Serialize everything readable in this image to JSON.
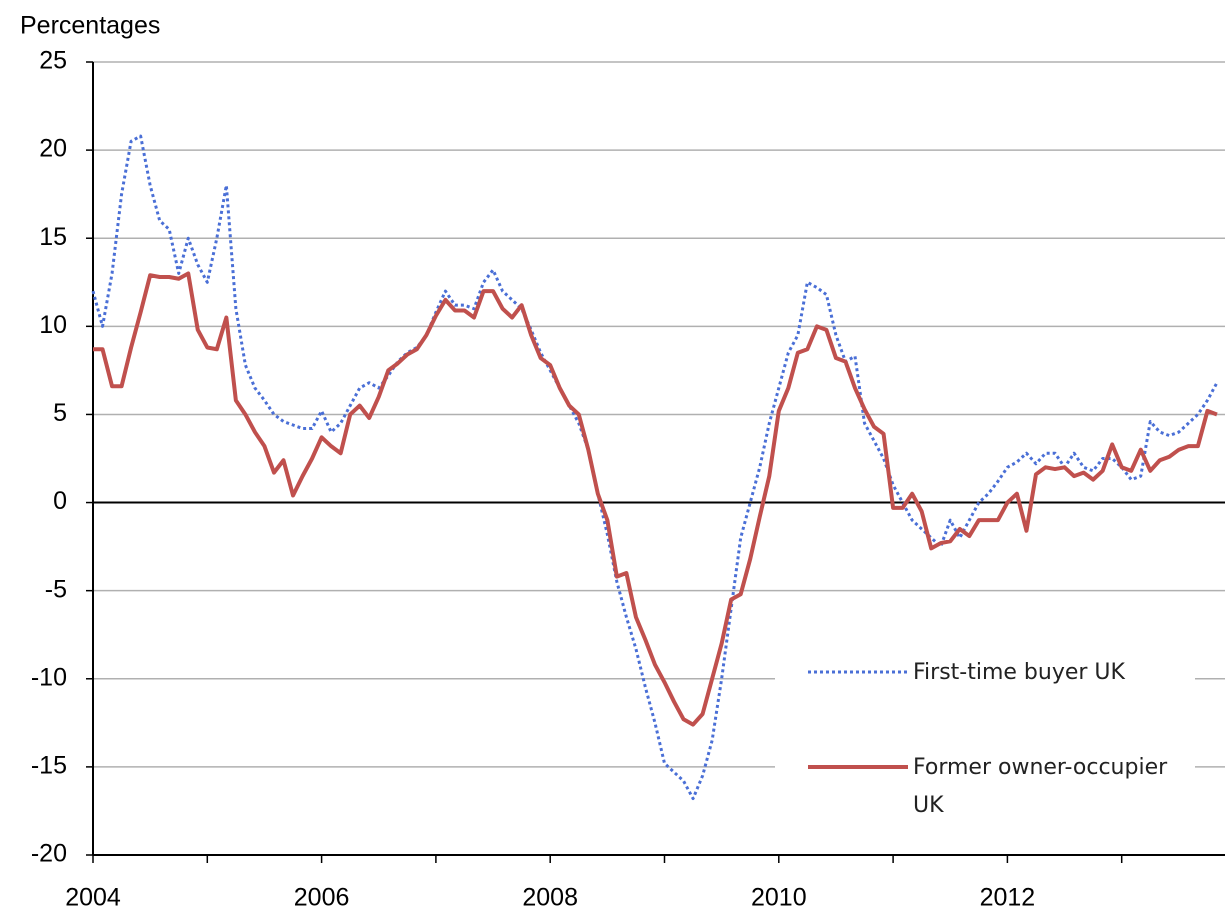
{
  "chart_data": {
    "type": "line",
    "y_label": "Percentages",
    "categories": [
      "2004",
      null,
      null,
      null,
      null,
      null,
      null,
      null,
      null,
      null,
      null,
      null,
      null,
      null,
      null,
      null,
      null,
      null,
      null,
      null,
      null,
      null,
      null,
      null,
      "2006",
      null,
      null,
      null,
      null,
      null,
      null,
      null,
      null,
      null,
      null,
      null,
      null,
      null,
      null,
      null,
      null,
      null,
      null,
      null,
      null,
      null,
      null,
      null,
      "2008",
      null,
      null,
      null,
      null,
      null,
      null,
      null,
      null,
      null,
      null,
      null,
      null,
      null,
      null,
      null,
      null,
      null,
      null,
      null,
      null,
      null,
      null,
      null,
      "2010",
      null,
      null,
      null,
      null,
      null,
      null,
      null,
      null,
      null,
      null,
      null,
      null,
      null,
      null,
      null,
      null,
      null,
      null,
      null,
      null,
      null,
      null,
      null,
      "2012",
      null,
      null,
      null,
      null,
      null,
      null,
      null,
      null,
      null,
      null,
      null,
      null,
      null,
      null,
      null,
      null,
      null,
      null,
      null,
      null,
      null,
      null
    ],
    "series": [
      {
        "name": "First-time buyer UK",
        "color": "#4a6fd6",
        "style": "dotted",
        "values": [
          12.0,
          10.0,
          13.0,
          17.5,
          20.5,
          20.8,
          18.0,
          16.0,
          15.5,
          13.0,
          15.0,
          13.5,
          12.5,
          15.0,
          18.0,
          11.0,
          7.8,
          6.5,
          5.8,
          5.0,
          4.6,
          4.4,
          4.2,
          4.2,
          5.2,
          4.0,
          4.5,
          5.5,
          6.5,
          6.8,
          6.5,
          7.2,
          8.0,
          8.5,
          8.8,
          9.5,
          10.8,
          12.0,
          11.2,
          11.2,
          11.0,
          12.5,
          13.2,
          12.0,
          11.5,
          11.0,
          9.8,
          8.5,
          7.5,
          6.5,
          5.5,
          4.5,
          3.0,
          0.5,
          -1.8,
          -4.5,
          -6.5,
          -8.3,
          -10.5,
          -12.5,
          -14.8,
          -15.3,
          -15.8,
          -16.8,
          -15.5,
          -13.5,
          -10.0,
          -6.0,
          -2.0,
          0.0,
          2.0,
          4.5,
          6.5,
          8.5,
          9.5,
          12.5,
          12.2,
          11.8,
          9.5,
          8.0,
          8.3,
          4.5,
          3.5,
          2.5,
          1.0,
          0.0,
          -1.0,
          -1.5,
          -2.0,
          -2.5,
          -1.0,
          -2.0,
          -1.0,
          0.0,
          0.5,
          1.2,
          2.0,
          2.3,
          2.8,
          2.2,
          2.8,
          2.8,
          2.0,
          2.8,
          2.0,
          1.8,
          2.5,
          2.5,
          2.0,
          1.3,
          1.5,
          4.6,
          4.0,
          3.8,
          4.0,
          4.5,
          5.0,
          5.8,
          6.8
        ]
      },
      {
        "name": "Former owner-occupier UK",
        "color": "#c0504d",
        "style": "solid",
        "values": [
          8.7,
          8.7,
          6.6,
          6.6,
          8.8,
          10.8,
          12.9,
          12.8,
          12.8,
          12.7,
          13.0,
          9.8,
          8.8,
          8.7,
          10.5,
          5.8,
          5.0,
          4.0,
          3.2,
          1.7,
          2.4,
          0.4,
          1.5,
          2.5,
          3.7,
          3.2,
          2.8,
          5.0,
          5.5,
          4.8,
          6.0,
          7.5,
          7.9,
          8.4,
          8.7,
          9.5,
          10.6,
          11.5,
          10.9,
          10.9,
          10.5,
          12.0,
          12.0,
          11.0,
          10.5,
          11.2,
          9.5,
          8.2,
          7.8,
          6.5,
          5.5,
          5.0,
          3.0,
          0.5,
          -1.0,
          -4.2,
          -4.0,
          -6.5,
          -7.8,
          -9.2,
          -10.2,
          -11.3,
          -12.3,
          -12.6,
          -12.0,
          -10.0,
          -8.0,
          -5.5,
          -5.2,
          -3.2,
          -0.8,
          1.5,
          5.2,
          6.5,
          8.5,
          8.7,
          10.0,
          9.8,
          8.2,
          8.0,
          6.5,
          5.3,
          4.3,
          3.9,
          -0.3,
          -0.3,
          0.5,
          -0.5,
          -2.6,
          -2.3,
          -2.2,
          -1.5,
          -1.9,
          -1.0,
          -1.0,
          -1.0,
          0.0,
          0.5,
          -1.6,
          1.6,
          2.0,
          1.9,
          2.0,
          1.5,
          1.7,
          1.3,
          1.8,
          3.3,
          2.0,
          1.8,
          3.0,
          1.8,
          2.4,
          2.6,
          3.0,
          3.2,
          3.2,
          5.2,
          5.0
        ]
      }
    ],
    "ylim": [
      -20,
      25
    ],
    "yticks": [
      -20,
      -15,
      -10,
      -5,
      0,
      5,
      10,
      15,
      20,
      25
    ],
    "grid": true,
    "legend": "lower right"
  }
}
